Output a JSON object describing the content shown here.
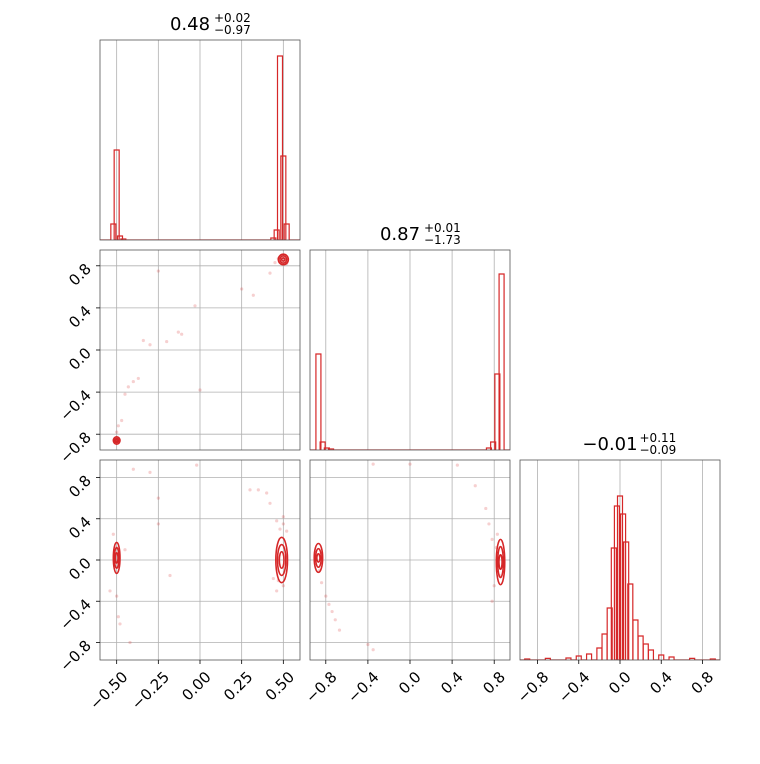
{
  "chart_data": {
    "type": "corner",
    "color": "#d62728",
    "grid": true,
    "parameters": [
      {
        "median": "0.48",
        "plus": "+0.02",
        "minus": "−0.97",
        "range": [
          -0.6,
          0.6
        ],
        "ticks": [
          -0.5,
          -0.25,
          0.0,
          0.25,
          0.5
        ],
        "tick_labels": [
          "−0.50",
          "−0.25",
          "0.00",
          "0.25",
          "0.50"
        ]
      },
      {
        "median": "0.87",
        "plus": "+0.01",
        "minus": "−1.73",
        "range": [
          -0.95,
          0.95
        ],
        "ticks": [
          -0.8,
          -0.4,
          0.0,
          0.4,
          0.8
        ],
        "tick_labels": [
          "−0.8",
          "−0.4",
          "0.0",
          "0.4",
          "0.8"
        ]
      },
      {
        "median": "−0.01",
        "plus": "+0.11",
        "minus": "−0.09",
        "range": [
          -0.97,
          0.97
        ],
        "ticks": [
          -0.8,
          -0.4,
          0.0,
          0.4,
          0.8
        ],
        "tick_labels": [
          "−0.8",
          "−0.4",
          "0.0",
          "0.4",
          "0.8"
        ]
      }
    ],
    "histograms": [
      {
        "param": 0,
        "bins": [
          [
            -0.52,
            0.08
          ],
          [
            -0.5,
            0.45
          ],
          [
            -0.48,
            0.02
          ],
          [
            -0.46,
            0.005
          ],
          [
            0.44,
            0.01
          ],
          [
            0.46,
            0.05
          ],
          [
            0.48,
            0.92
          ],
          [
            0.5,
            0.42
          ],
          [
            0.52,
            0.08
          ]
        ]
      },
      {
        "param": 1,
        "bins": [
          [
            -0.87,
            0.48
          ],
          [
            -0.83,
            0.04
          ],
          [
            -0.79,
            0.01
          ],
          [
            -0.75,
            0.005
          ],
          [
            0.75,
            0.01
          ],
          [
            0.79,
            0.04
          ],
          [
            0.83,
            0.38
          ],
          [
            0.87,
            0.88
          ]
        ]
      },
      {
        "param": 2,
        "bins": [
          [
            -0.9,
            0.005
          ],
          [
            -0.7,
            0.008
          ],
          [
            -0.5,
            0.01
          ],
          [
            -0.4,
            0.02
          ],
          [
            -0.3,
            0.03
          ],
          [
            -0.2,
            0.06
          ],
          [
            -0.15,
            0.13
          ],
          [
            -0.1,
            0.26
          ],
          [
            -0.06,
            0.56
          ],
          [
            -0.03,
            0.77
          ],
          [
            0.0,
            0.82
          ],
          [
            0.03,
            0.73
          ],
          [
            0.06,
            0.59
          ],
          [
            0.1,
            0.38
          ],
          [
            0.15,
            0.2
          ],
          [
            0.2,
            0.12
          ],
          [
            0.25,
            0.08
          ],
          [
            0.3,
            0.05
          ],
          [
            0.4,
            0.025
          ],
          [
            0.5,
            0.015
          ],
          [
            0.7,
            0.008
          ],
          [
            0.9,
            0.005
          ]
        ]
      }
    ],
    "scatter": [
      {
        "xparam": 0,
        "yparam": 1,
        "points": [
          [
            -0.5,
            -0.86
          ],
          [
            -0.49,
            -0.84
          ],
          [
            -0.5,
            -0.78
          ],
          [
            -0.49,
            -0.72
          ],
          [
            -0.47,
            -0.67
          ],
          [
            -0.45,
            -0.42
          ],
          [
            -0.43,
            -0.35
          ],
          [
            -0.4,
            -0.3
          ],
          [
            -0.37,
            -0.27
          ],
          [
            -0.34,
            0.09
          ],
          [
            -0.3,
            0.05
          ],
          [
            -0.2,
            0.08
          ],
          [
            -0.13,
            0.17
          ],
          [
            -0.11,
            0.15
          ],
          [
            -0.03,
            0.42
          ],
          [
            0.0,
            -0.38
          ],
          [
            -0.25,
            0.75
          ],
          [
            0.25,
            0.58
          ],
          [
            0.32,
            0.52
          ],
          [
            0.42,
            0.73
          ],
          [
            0.45,
            0.83
          ],
          [
            0.48,
            0.88
          ],
          [
            0.5,
            0.85
          ],
          [
            0.52,
            0.82
          ],
          [
            0.47,
            0.87
          ]
        ]
      },
      {
        "xparam": 0,
        "yparam": 2,
        "points": [
          [
            -0.5,
            0.12
          ],
          [
            -0.49,
            -0.05
          ],
          [
            -0.5,
            -0.35
          ],
          [
            -0.49,
            -0.55
          ],
          [
            -0.48,
            -0.62
          ],
          [
            -0.52,
            0.25
          ],
          [
            -0.54,
            -0.3
          ],
          [
            -0.45,
            0.1
          ],
          [
            -0.42,
            -0.8
          ],
          [
            -0.4,
            0.88
          ],
          [
            -0.3,
            0.85
          ],
          [
            -0.25,
            0.6
          ],
          [
            -0.25,
            0.35
          ],
          [
            -0.18,
            -0.15
          ],
          [
            -0.02,
            0.92
          ],
          [
            0.3,
            0.68
          ],
          [
            0.35,
            0.68
          ],
          [
            0.4,
            0.65
          ],
          [
            0.42,
            0.55
          ],
          [
            0.46,
            0.38
          ],
          [
            0.47,
            -0.2
          ],
          [
            0.48,
            0.3
          ],
          [
            0.5,
            0.35
          ],
          [
            0.52,
            0.28
          ],
          [
            0.5,
            -0.25
          ],
          [
            0.46,
            -0.3
          ],
          [
            0.44,
            -0.18
          ],
          [
            0.5,
            0.42
          ]
        ]
      },
      {
        "xparam": 1,
        "yparam": 2,
        "points": [
          [
            -0.87,
            0.05
          ],
          [
            -0.86,
            -0.1
          ],
          [
            -0.84,
            -0.22
          ],
          [
            -0.8,
            -0.35
          ],
          [
            -0.77,
            -0.43
          ],
          [
            -0.74,
            -0.5
          ],
          [
            -0.71,
            -0.58
          ],
          [
            -0.67,
            -0.68
          ],
          [
            -0.4,
            -0.82
          ],
          [
            -0.35,
            -0.87
          ],
          [
            -0.35,
            0.93
          ],
          [
            0.0,
            0.93
          ],
          [
            0.45,
            0.92
          ],
          [
            0.62,
            0.72
          ],
          [
            0.72,
            0.5
          ],
          [
            0.75,
            0.35
          ],
          [
            0.78,
            0.2
          ],
          [
            0.82,
            0.12
          ],
          [
            0.84,
            -0.05
          ],
          [
            0.8,
            -0.25
          ],
          [
            0.78,
            -0.4
          ],
          [
            0.85,
            -0.15
          ],
          [
            0.83,
            0.25
          ]
        ]
      }
    ],
    "contours": [
      {
        "xparam": 0,
        "yparam": 1,
        "cx": 0.5,
        "cy": 0.86,
        "rx": [
          0.03,
          0.02,
          0.01
        ],
        "ry": [
          0.05,
          0.035,
          0.015
        ]
      },
      {
        "xparam": 0,
        "yparam": 1,
        "cx": -0.5,
        "cy": -0.86,
        "rx": [
          0.02,
          0.012,
          0.006
        ],
        "ry": [
          0.035,
          0.02,
          0.01
        ]
      },
      {
        "xparam": 0,
        "yparam": 2,
        "cx": -0.5,
        "cy": 0.02,
        "rx": [
          0.02,
          0.014,
          0.008
        ],
        "ry": [
          0.15,
          0.1,
          0.05
        ]
      },
      {
        "xparam": 0,
        "yparam": 2,
        "cx": 0.49,
        "cy": 0.0,
        "rx": [
          0.035,
          0.025,
          0.014
        ],
        "ry": [
          0.22,
          0.15,
          0.08
        ]
      },
      {
        "xparam": 1,
        "yparam": 2,
        "cx": -0.87,
        "cy": 0.02,
        "rx": [
          0.04,
          0.027,
          0.015
        ],
        "ry": [
          0.14,
          0.09,
          0.04
        ]
      },
      {
        "xparam": 1,
        "yparam": 2,
        "cx": 0.86,
        "cy": -0.02,
        "rx": [
          0.04,
          0.027,
          0.015
        ],
        "ry": [
          0.22,
          0.15,
          0.07
        ]
      }
    ]
  }
}
